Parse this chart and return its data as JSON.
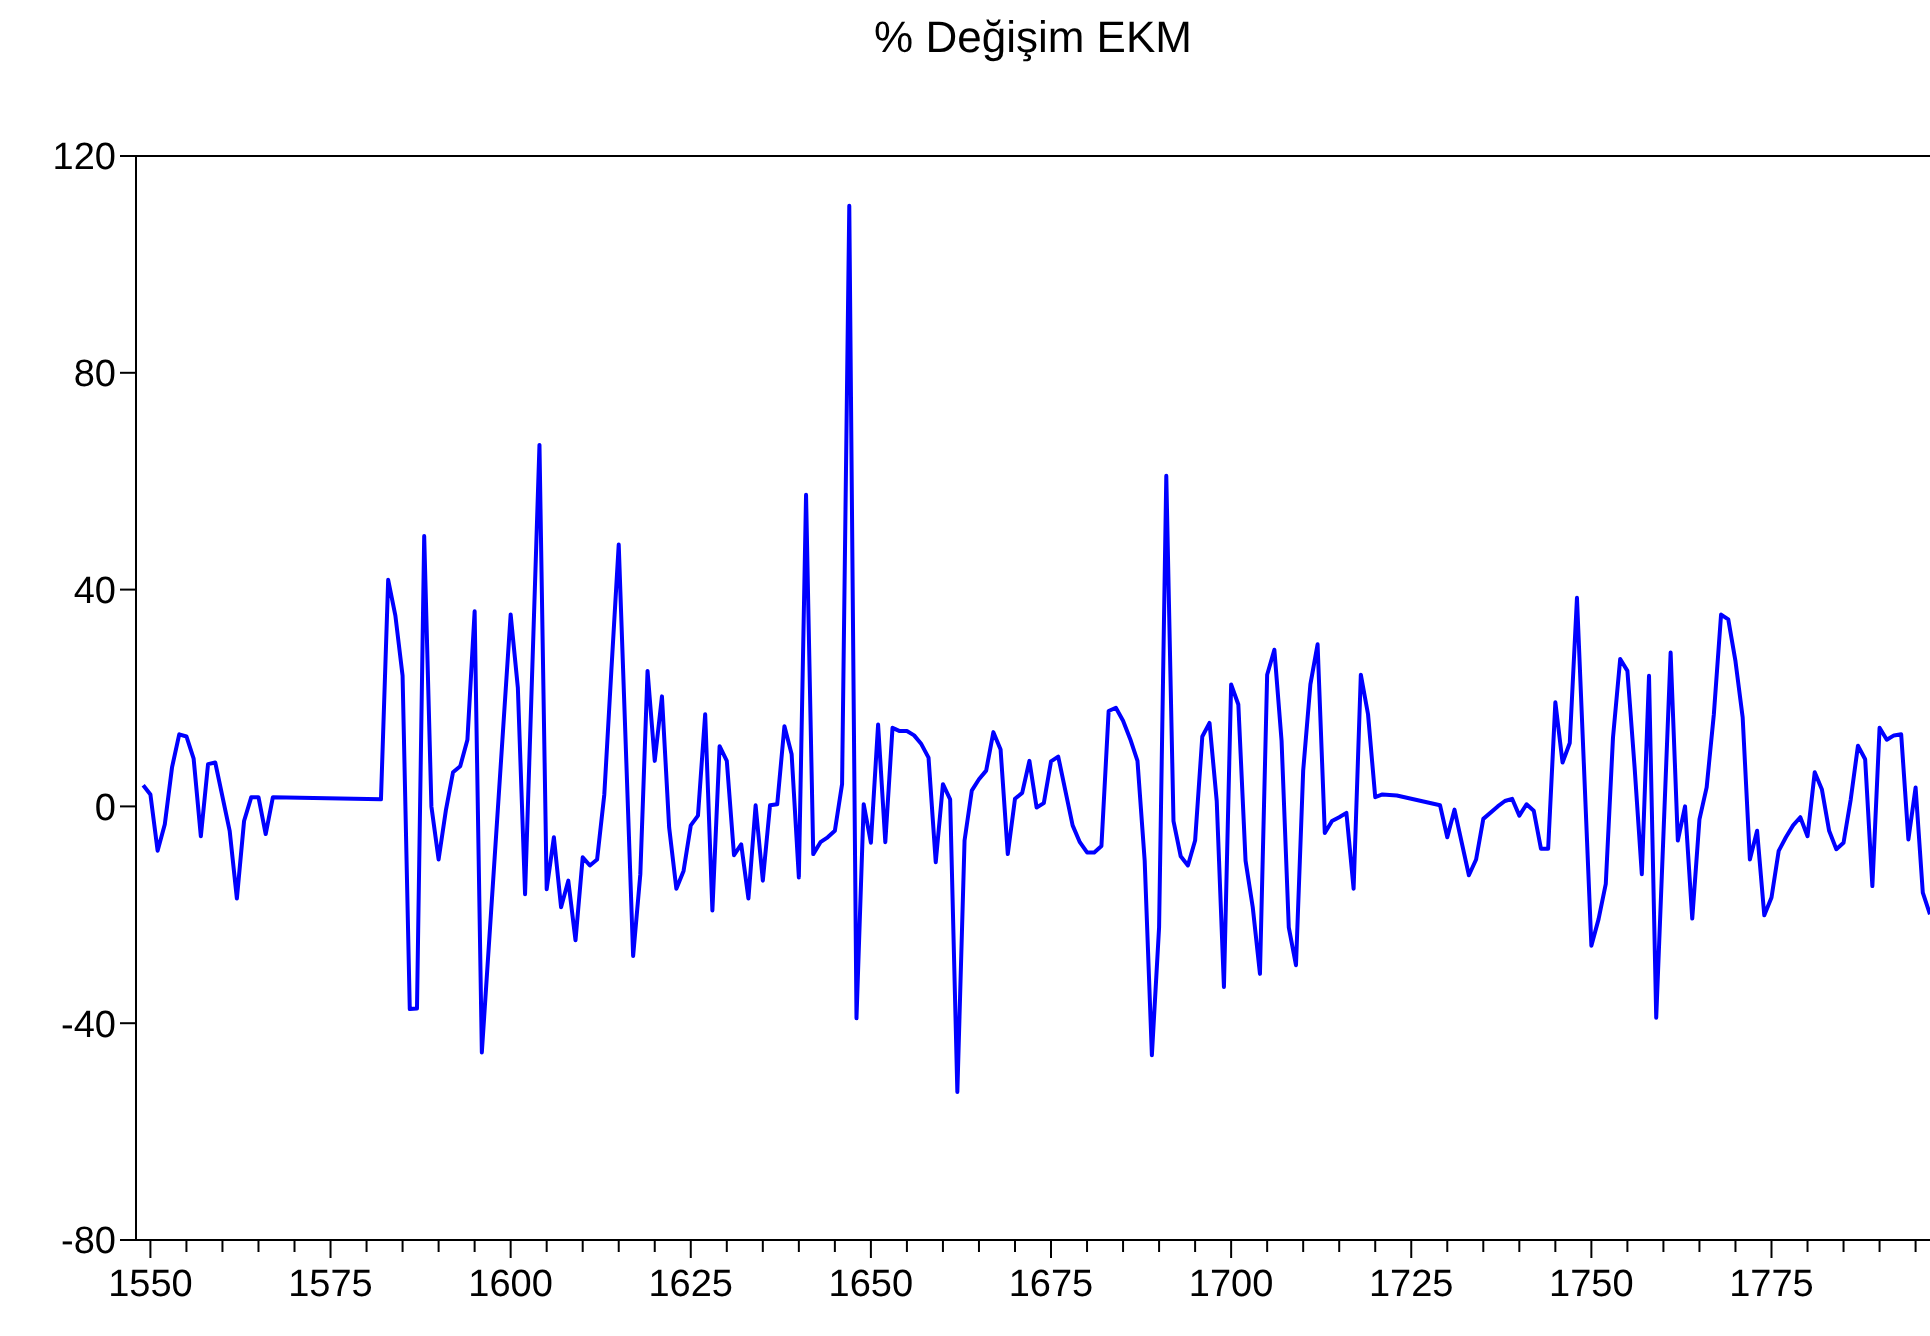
{
  "chart_data": {
    "type": "line",
    "title": "% Değişim EKM",
    "x": [
      1549,
      1550,
      1551,
      1552,
      1553,
      1554,
      1555,
      1556,
      1557,
      1558,
      1559,
      1561,
      1562,
      1563,
      1564,
      1565,
      1566,
      1567,
      1582,
      1583,
      1584,
      1585,
      1586,
      1587,
      1588,
      1589,
      1590,
      1591,
      1592,
      1593,
      1594,
      1595,
      1596,
      1600,
      1601,
      1602,
      1604,
      1605,
      1606,
      1607,
      1608,
      1609,
      1610,
      1611,
      1612,
      1613,
      1614,
      1615,
      1617,
      1618,
      1619,
      1620,
      1621,
      1622,
      1623,
      1624,
      1625,
      1626,
      1627,
      1628,
      1629,
      1630,
      1631,
      1632,
      1633,
      1634,
      1635,
      1636,
      1637,
      1638,
      1639,
      1640,
      1641,
      1642,
      1643,
      1644,
      1645,
      1646,
      1647,
      1648,
      1649,
      1650,
      1651,
      1652,
      1653,
      1654,
      1655,
      1656,
      1657,
      1658,
      1659,
      1660,
      1661,
      1662,
      1663,
      1664,
      1665,
      1666,
      1667,
      1668,
      1669,
      1670,
      1671,
      1672,
      1673,
      1674,
      1675,
      1676,
      1678,
      1679,
      1680,
      1681,
      1682,
      1683,
      1684,
      1685,
      1686,
      1687,
      1688,
      1689,
      1690,
      1691,
      1692,
      1693,
      1694,
      1695,
      1696,
      1697,
      1698,
      1699,
      1700,
      1701,
      1702,
      1703,
      1704,
      1705,
      1706,
      1707,
      1708,
      1709,
      1710,
      1711,
      1712,
      1713,
      1714,
      1715,
      1716,
      1717,
      1718,
      1719,
      1720,
      1721,
      1723,
      1729,
      1730,
      1731,
      1733,
      1734,
      1735,
      1737,
      1738,
      1739,
      1740,
      1741,
      1742,
      1743,
      1744,
      1745,
      1746,
      1747,
      1748,
      1750,
      1751,
      1752,
      1753,
      1754,
      1755,
      1756,
      1757,
      1758,
      1759,
      1761,
      1762,
      1763,
      1764,
      1765,
      1766,
      1767,
      1768,
      1769,
      1770,
      1771,
      1772,
      1773,
      1774,
      1775,
      1776,
      1777,
      1778,
      1779,
      1780,
      1781,
      1782,
      1783,
      1784,
      1785,
      1786,
      1787,
      1788,
      1789,
      1790,
      1791,
      1792,
      1793,
      1794,
      1795,
      1796,
      1797
    ],
    "values": [
      3.9,
      2.2,
      -8.2,
      -3.3,
      7.2,
      13.3,
      12.9,
      8.8,
      -5.5,
      7.8,
      8.1,
      -4.5,
      -17,
      -2.7,
      1.7,
      1.7,
      -5.1,
      1.7,
      1.3,
      41.8,
      35.2,
      24.1,
      -37.4,
      -37.3,
      49.9,
      0,
      -9.8,
      -0.8,
      6.3,
      7.4,
      12.3,
      36,
      -45.4,
      35.4,
      21.9,
      -16.2,
      66.7,
      -15.3,
      -5.7,
      -18.6,
      -13.7,
      -24.7,
      -9.4,
      -10.9,
      -9.8,
      2.2,
      25.6,
      48.3,
      -27.6,
      -12.5,
      25,
      8.4,
      20.3,
      -3.9,
      -15.2,
      -11.9,
      -3.5,
      -1.7,
      17,
      -19.2,
      11.1,
      8.4,
      -9,
      -7,
      -17,
      0.2,
      -13.7,
      0.2,
      0.4,
      14.8,
      9.6,
      -13.1,
      57.5,
      -8.8,
      -6.6,
      -5.7,
      -4.5,
      4.1,
      110.8,
      -39.1,
      0.4,
      -6.7,
      15.1,
      -6.6,
      14.5,
      13.9,
      13.9,
      13.1,
      11.5,
      9,
      -10.3,
      4.1,
      1.3,
      -52.7,
      -6.3,
      2.9,
      5,
      6.6,
      13.7,
      10.5,
      -8.8,
      1.4,
      2.5,
      8.4,
      -0.2,
      0.6,
      8.3,
      9.2,
      -3.5,
      -6.6,
      -8.5,
      -8.5,
      -7.3,
      17.6,
      18.2,
      15.8,
      12.4,
      8.4,
      -10,
      -45.9,
      -22.3,
      61,
      -2.7,
      -9.2,
      -10.9,
      -6.3,
      12.9,
      15.4,
      1,
      -33.3,
      22.5,
      18.8,
      -10,
      -18.6,
      -30.9,
      24.3,
      28.9,
      12.1,
      -22.3,
      -29.3,
      6.6,
      22.5,
      29.9,
      -4.9,
      -2.7,
      -2,
      -1.2,
      -15.2,
      24.3,
      17,
      1.7,
      2.2,
      2,
      0.2,
      -5.7,
      -0.6,
      -12.7,
      -9.8,
      -2.3,
      0,
      1,
      1.4,
      -1.7,
      0.4,
      -0.8,
      -7.8,
      -7.8,
      19.2,
      8.1,
      11.7,
      38.5,
      -25.7,
      -20.8,
      -14.3,
      12.7,
      27.2,
      25,
      7.2,
      -12.5,
      24.1,
      -39,
      28.4,
      -6.3,
      0,
      -20.7,
      -2.4,
      3.5,
      17,
      35.4,
      34.5,
      26.8,
      16.4,
      -9.8,
      -4.5,
      -20.1,
      -16.8,
      -8.2,
      -5.7,
      -3.5,
      -2,
      -5.5,
      6.3,
      3.1,
      -4.5,
      -7.9,
      -6.7,
      1.3,
      11.2,
      8.7,
      -14.7,
      14.5,
      12.3,
      13.1,
      13.3,
      -6.1,
      3.5,
      -15.9,
      -19.9
    ],
    "color": "#0000ff",
    "xlim": [
      1548,
      1797
    ],
    "xticks": [
      1550,
      {
        "value": 1555,
        "label": null
      },
      {
        "value": 1560,
        "label": null
      },
      {
        "value": 1565,
        "label": null
      },
      {
        "value": 1570,
        "label": null
      },
      1575,
      {
        "value": 1580,
        "label": null
      },
      {
        "value": 1585,
        "label": null
      },
      {
        "value": 1590,
        "label": null
      },
      {
        "value": 1595,
        "label": null
      },
      1600,
      {
        "value": 1605,
        "label": null
      },
      {
        "value": 1610,
        "label": null
      },
      {
        "value": 1615,
        "label": null
      },
      {
        "value": 1620,
        "label": null
      },
      1625,
      {
        "value": 1630,
        "label": null
      },
      {
        "value": 1635,
        "label": null
      },
      {
        "value": 1640,
        "label": null
      },
      {
        "value": 1645,
        "label": null
      },
      1650,
      {
        "value": 1655,
        "label": null
      },
      {
        "value": 1660,
        "label": null
      },
      {
        "value": 1665,
        "label": null
      },
      {
        "value": 1670,
        "label": null
      },
      1675,
      {
        "value": 1680,
        "label": null
      },
      {
        "value": 1685,
        "label": null
      },
      {
        "value": 1690,
        "label": null
      },
      {
        "value": 1695,
        "label": null
      },
      1700,
      {
        "value": 1705,
        "label": null
      },
      {
        "value": 1710,
        "label": null
      },
      {
        "value": 1715,
        "label": null
      },
      {
        "value": 1720,
        "label": null
      },
      1725,
      {
        "value": 1730,
        "label": null
      },
      {
        "value": 1735,
        "label": null
      },
      {
        "value": 1740,
        "label": null
      },
      {
        "value": 1745,
        "label": null
      },
      1750,
      {
        "value": 1755,
        "label": null
      },
      {
        "value": 1760,
        "label": null
      },
      {
        "value": 1765,
        "label": null
      },
      {
        "value": 1770,
        "label": null
      },
      1775,
      {
        "value": 1780,
        "label": null
      },
      {
        "value": 1785,
        "label": null
      },
      {
        "value": 1790,
        "label": null
      },
      {
        "value": 1795,
        "label": null
      }
    ],
    "ylim": [
      -80,
      120
    ],
    "yticks": [
      -80,
      -40,
      0,
      40,
      80,
      120
    ]
  }
}
